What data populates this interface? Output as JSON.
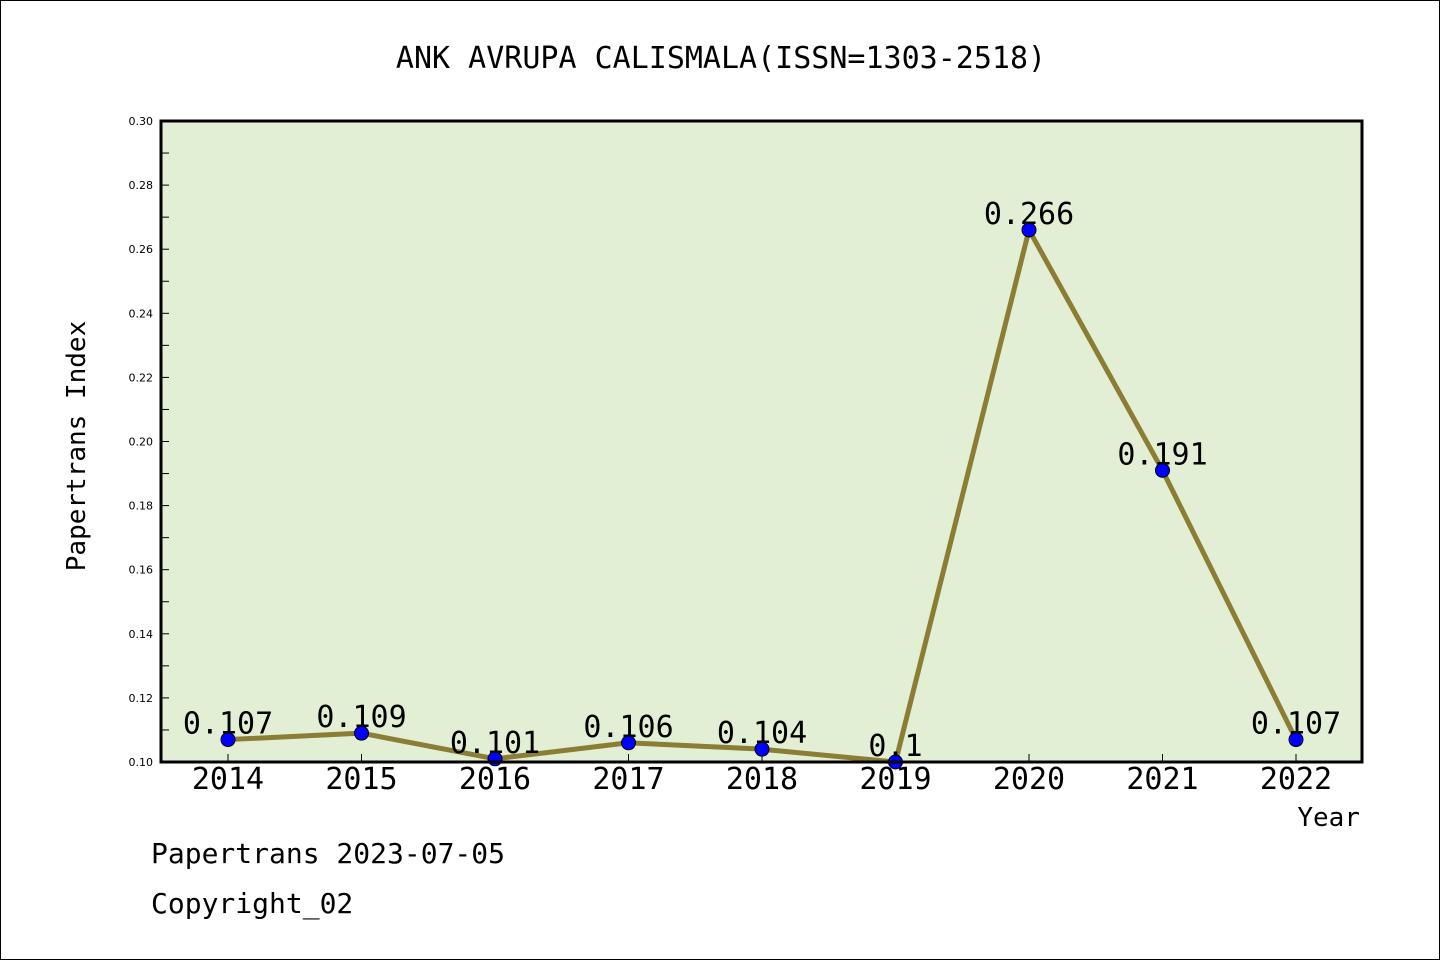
{
  "chart_data": {
    "type": "line",
    "title": "ANK AVRUPA CALISMALA(ISSN=1303-2518)",
    "xlabel": "Year",
    "ylabel": "Papertrans Index",
    "categories": [
      "2014",
      "2015",
      "2016",
      "2017",
      "2018",
      "2019",
      "2020",
      "2021",
      "2022"
    ],
    "values": [
      0.107,
      0.109,
      0.101,
      0.106,
      0.104,
      0.1,
      0.266,
      0.191,
      0.107
    ],
    "data_labels": [
      "0.107",
      "0.109",
      "0.101",
      "0.106",
      "0.104",
      "0.1",
      "0.266",
      "0.191",
      "0.107"
    ],
    "ylim": [
      0.1,
      0.3
    ],
    "yticks": [
      "0.10",
      "0.12",
      "0.14",
      "0.16",
      "0.18",
      "0.20",
      "0.22",
      "0.24",
      "0.26",
      "0.28",
      "0.30"
    ],
    "grid": false,
    "legend": "none",
    "colors": {
      "plot_background": "#e2efd5",
      "line": "#8b7d33",
      "marker": "#0000ff"
    }
  },
  "footer": {
    "source": "Papertrans 2023-07-05",
    "copyright": "Copyright_02"
  }
}
